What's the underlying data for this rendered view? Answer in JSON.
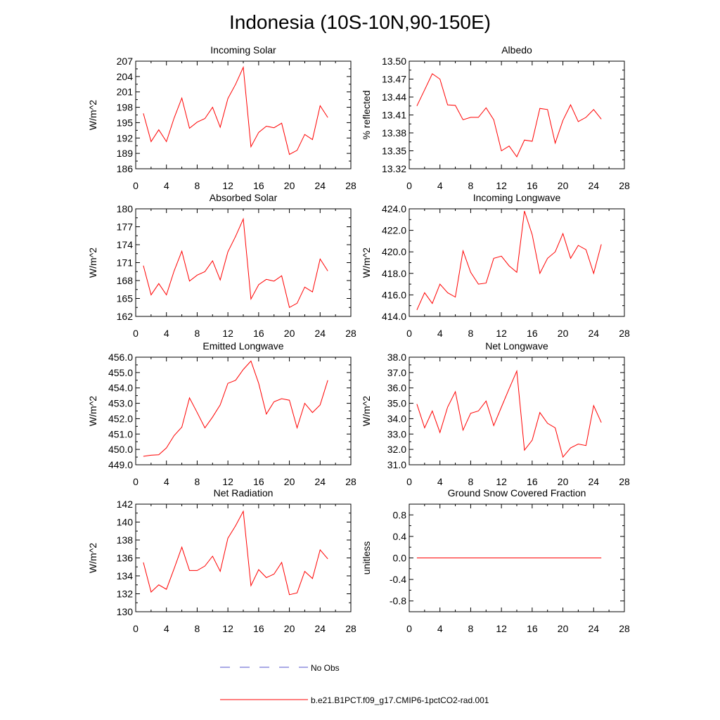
{
  "title": "Indonesia (10S-10N,90-150E)",
  "legend": {
    "items": [
      {
        "label": "No Obs",
        "color": "#5555cc",
        "style": "dashed"
      },
      {
        "label": "b.e21.B1PCT.f09_g17.CMIP6-1pctCO2-rad.001",
        "color": "#ff0000",
        "style": "solid"
      }
    ]
  },
  "chart_data": [
    {
      "type": "line",
      "title": "Incoming Solar",
      "ylabel": "W/m^2",
      "xlim": [
        0,
        28
      ],
      "xticks": [
        "0",
        "4",
        "8",
        "12",
        "16",
        "20",
        "24",
        "28"
      ],
      "ylim": [
        186,
        207
      ],
      "yticks": [
        "186",
        "189",
        "192",
        "195",
        "198",
        "201",
        "204",
        "207"
      ],
      "series": [
        {
          "color": "#ff0000",
          "x": [
            1,
            2,
            3,
            4,
            5,
            6,
            7,
            8,
            9,
            10,
            11,
            12,
            13,
            14,
            15,
            16,
            17,
            18,
            19,
            20,
            21,
            22,
            23,
            24,
            25
          ],
          "y": [
            196.8,
            191.3,
            193.6,
            191.3,
            195.9,
            199.8,
            193.9,
            195.1,
            195.8,
            198.0,
            194.1,
            199.7,
            202.5,
            205.8,
            190.3,
            193.1,
            194.3,
            194.0,
            194.9,
            188.8,
            189.6,
            192.7,
            191.7,
            198.3,
            196.0
          ]
        }
      ]
    },
    {
      "type": "line",
      "title": "Albedo",
      "ylabel": "% reflected",
      "xlim": [
        0,
        28
      ],
      "xticks": [
        "0",
        "4",
        "8",
        "12",
        "16",
        "20",
        "24",
        "28"
      ],
      "ylim": [
        13.32,
        13.5
      ],
      "yticks": [
        "13.32",
        "13.35",
        "13.38",
        "13.41",
        "13.44",
        "13.47",
        "13.50"
      ],
      "series": [
        {
          "color": "#ff0000",
          "x": [
            1,
            2,
            3,
            4,
            5,
            6,
            7,
            8,
            9,
            10,
            11,
            12,
            13,
            14,
            15,
            16,
            17,
            18,
            19,
            20,
            21,
            22,
            23,
            24,
            25
          ],
          "y": [
            13.425,
            13.452,
            13.479,
            13.47,
            13.427,
            13.426,
            13.402,
            13.406,
            13.406,
            13.422,
            13.402,
            13.35,
            13.358,
            13.34,
            13.368,
            13.366,
            13.421,
            13.419,
            13.363,
            13.401,
            13.427,
            13.399,
            13.406,
            13.419,
            13.403
          ]
        }
      ]
    },
    {
      "type": "line",
      "title": "Absorbed Solar",
      "ylabel": "W/m^2",
      "xlim": [
        0,
        28
      ],
      "xticks": [
        "0",
        "4",
        "8",
        "12",
        "16",
        "20",
        "24",
        "28"
      ],
      "ylim": [
        162,
        180
      ],
      "yticks": [
        "162",
        "165",
        "168",
        "171",
        "174",
        "177",
        "180"
      ],
      "series": [
        {
          "color": "#ff0000",
          "x": [
            1,
            2,
            3,
            4,
            5,
            6,
            7,
            8,
            9,
            10,
            11,
            12,
            13,
            14,
            15,
            16,
            17,
            18,
            19,
            20,
            21,
            22,
            23,
            24,
            25
          ],
          "y": [
            170.5,
            165.6,
            167.5,
            165.6,
            169.6,
            172.9,
            167.9,
            168.9,
            169.5,
            171.3,
            168.1,
            172.8,
            175.4,
            178.3,
            164.9,
            167.3,
            168.2,
            167.9,
            168.8,
            163.5,
            164.2,
            166.9,
            166.1,
            171.6,
            169.6
          ]
        }
      ]
    },
    {
      "type": "line",
      "title": "Incoming Longwave",
      "ylabel": "W/m^2",
      "xlim": [
        0,
        28
      ],
      "xticks": [
        "0",
        "4",
        "8",
        "12",
        "16",
        "20",
        "24",
        "28"
      ],
      "ylim": [
        414.0,
        424.0
      ],
      "yticks": [
        "414.0",
        "416.0",
        "418.0",
        "420.0",
        "422.0",
        "424.0"
      ],
      "series": [
        {
          "color": "#ff0000",
          "x": [
            1,
            2,
            3,
            4,
            5,
            6,
            7,
            8,
            9,
            10,
            11,
            12,
            13,
            14,
            15,
            16,
            17,
            18,
            19,
            20,
            21,
            22,
            23,
            24,
            25
          ],
          "y": [
            414.6,
            416.2,
            415.2,
            417.0,
            416.2,
            415.8,
            420.1,
            418.1,
            417.0,
            417.1,
            419.4,
            419.6,
            418.7,
            418.1,
            423.8,
            421.6,
            418.0,
            419.4,
            420.0,
            421.7,
            419.4,
            420.6,
            420.2,
            418.0,
            420.7
          ]
        }
      ]
    },
    {
      "type": "line",
      "title": "Emitted Longwave",
      "ylabel": "W/m^2",
      "xlim": [
        0,
        28
      ],
      "xticks": [
        "0",
        "4",
        "8",
        "12",
        "16",
        "20",
        "24",
        "28"
      ],
      "ylim": [
        449.0,
        456.0
      ],
      "yticks": [
        "449.0",
        "450.0",
        "451.0",
        "452.0",
        "453.0",
        "454.0",
        "455.0",
        "456.0"
      ],
      "series": [
        {
          "color": "#ff0000",
          "x": [
            1,
            2,
            3,
            4,
            5,
            6,
            7,
            8,
            9,
            10,
            11,
            12,
            13,
            14,
            15,
            16,
            17,
            18,
            19,
            20,
            21,
            22,
            23,
            24,
            25
          ],
          "y": [
            449.55,
            449.62,
            449.65,
            450.1,
            450.9,
            451.45,
            453.35,
            452.4,
            451.4,
            452.1,
            452.9,
            454.3,
            454.5,
            455.2,
            455.75,
            454.3,
            452.3,
            453.1,
            453.3,
            453.2,
            451.4,
            453.0,
            452.4,
            452.9,
            454.5
          ]
        }
      ]
    },
    {
      "type": "line",
      "title": "Net Longwave",
      "ylabel": "W/m^2",
      "xlim": [
        0,
        28
      ],
      "xticks": [
        "0",
        "4",
        "8",
        "12",
        "16",
        "20",
        "24",
        "28"
      ],
      "ylim": [
        31.0,
        38.0
      ],
      "yticks": [
        "31.0",
        "32.0",
        "33.0",
        "34.0",
        "35.0",
        "36.0",
        "37.0",
        "38.0"
      ],
      "series": [
        {
          "color": "#ff0000",
          "x": [
            1,
            2,
            3,
            4,
            5,
            6,
            7,
            8,
            9,
            10,
            11,
            12,
            13,
            14,
            15,
            16,
            17,
            18,
            19,
            20,
            21,
            22,
            23,
            24,
            25
          ],
          "y": [
            34.95,
            33.4,
            34.5,
            33.1,
            34.75,
            35.75,
            33.25,
            34.35,
            34.5,
            35.15,
            33.55,
            34.75,
            35.95,
            37.1,
            31.95,
            32.6,
            34.4,
            33.7,
            33.4,
            31.5,
            32.1,
            32.35,
            32.25,
            34.85,
            33.75
          ]
        }
      ]
    },
    {
      "type": "line",
      "title": "Net Radiation",
      "ylabel": "W/m^2",
      "xlim": [
        0,
        28
      ],
      "xticks": [
        "0",
        "4",
        "8",
        "12",
        "16",
        "20",
        "24",
        "28"
      ],
      "ylim": [
        130,
        142
      ],
      "yticks": [
        "130",
        "132",
        "134",
        "136",
        "138",
        "140",
        "142"
      ],
      "series": [
        {
          "color": "#ff0000",
          "x": [
            1,
            2,
            3,
            4,
            5,
            6,
            7,
            8,
            9,
            10,
            11,
            12,
            13,
            14,
            15,
            16,
            17,
            18,
            19,
            20,
            21,
            22,
            23,
            24,
            25
          ],
          "y": [
            135.5,
            132.2,
            133.0,
            132.5,
            134.8,
            137.2,
            134.6,
            134.6,
            135.1,
            136.2,
            134.5,
            138.2,
            139.6,
            141.2,
            132.9,
            134.7,
            133.8,
            134.2,
            135.5,
            131.9,
            132.1,
            134.5,
            133.7,
            136.9,
            135.9
          ]
        }
      ]
    },
    {
      "type": "line",
      "title": "Ground Snow Covered Fraction",
      "ylabel": "unitless",
      "xlim": [
        0,
        28
      ],
      "xticks": [
        "0",
        "4",
        "8",
        "12",
        "16",
        "20",
        "24",
        "28"
      ],
      "ylim": [
        -1.0,
        1.0
      ],
      "yticks": [
        "-0.8",
        "-0.4",
        "0.0",
        "0.4",
        "0.8"
      ],
      "ytick_values": [
        -0.8,
        -0.4,
        0.0,
        0.4,
        0.8
      ],
      "series": [
        {
          "color": "#ff0000",
          "x": [
            1,
            25
          ],
          "y": [
            0.0,
            0.0
          ]
        }
      ]
    }
  ]
}
